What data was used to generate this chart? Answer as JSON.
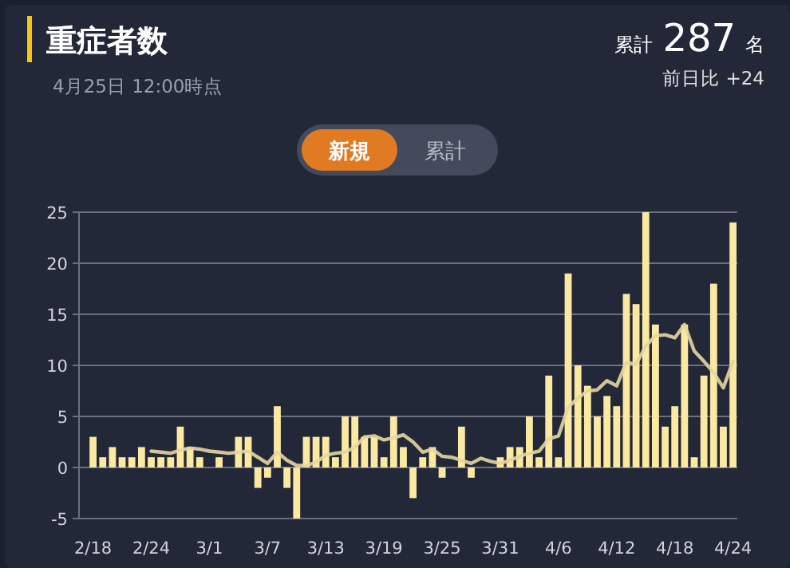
{
  "chart_data": {
    "type": "bar",
    "title": "重症者数",
    "subtitle": "4月25日 12:00時点",
    "annotations": [
      "累計 287 名",
      "前日比 +24",
      "新規",
      "累計"
    ],
    "categories": [
      "2/18",
      null,
      null,
      null,
      null,
      null,
      "2/24",
      null,
      null,
      null,
      null,
      null,
      "3/1",
      null,
      null,
      null,
      null,
      null,
      "3/7",
      null,
      null,
      null,
      null,
      null,
      "3/13",
      null,
      null,
      null,
      null,
      null,
      "3/19",
      null,
      null,
      null,
      null,
      null,
      "3/25",
      null,
      null,
      null,
      null,
      null,
      "3/31",
      null,
      null,
      null,
      null,
      null,
      "4/6",
      null,
      null,
      null,
      null,
      null,
      "4/12",
      null,
      null,
      null,
      null,
      null,
      "4/18",
      null,
      null,
      null,
      null,
      null,
      "4/24"
    ],
    "series": [
      {
        "color": "#fbe9a2",
        "values": [
          3,
          1,
          2,
          1,
          1,
          2,
          1,
          1,
          1,
          4,
          2,
          1,
          0,
          1,
          0,
          3,
          3,
          -2,
          -1,
          6,
          -2,
          -5,
          3,
          3,
          3,
          1,
          5,
          5,
          3,
          3,
          1,
          5,
          2,
          -3,
          1,
          2,
          -1,
          0,
          4,
          -1,
          0,
          0,
          1,
          2,
          2,
          5,
          1,
          9,
          1,
          19,
          10,
          8,
          5,
          7,
          6,
          17,
          16,
          25,
          14,
          4,
          6,
          14,
          1,
          9,
          18,
          4,
          24
        ]
      },
      {
        "type": "line",
        "color": "#e6d6a0",
        "values": [
          null,
          null,
          null,
          null,
          null,
          null,
          1.6,
          1.5,
          1.4,
          1.7,
          1.9,
          1.8,
          1.6,
          1.5,
          1.4,
          1.5,
          1.6,
          1.0,
          0.4,
          1.5,
          0.7,
          0.2,
          0.2,
          0.5,
          1.2,
          1.4,
          1.5,
          2.0,
          3.0,
          3.1,
          2.7,
          2.9,
          3.2,
          2.5,
          1.5,
          1.8,
          1.1,
          1.0,
          0.7,
          0.4,
          0.9,
          0.6,
          0.4,
          0.7,
          1.1,
          1.4,
          1.6,
          2.8,
          3.1,
          5.9,
          6.8,
          7.5,
          7.6,
          8.5,
          8.0,
          10.3,
          10.1,
          11.9,
          12.9,
          13.0,
          12.7,
          14.0,
          11.4,
          10.4,
          9.3,
          7.8,
          10.4
        ]
      }
    ],
    "ylim": [
      -5,
      25
    ],
    "yticks": [
      -5,
      0,
      5,
      10,
      15,
      20,
      25
    ],
    "grid": "y"
  }
}
